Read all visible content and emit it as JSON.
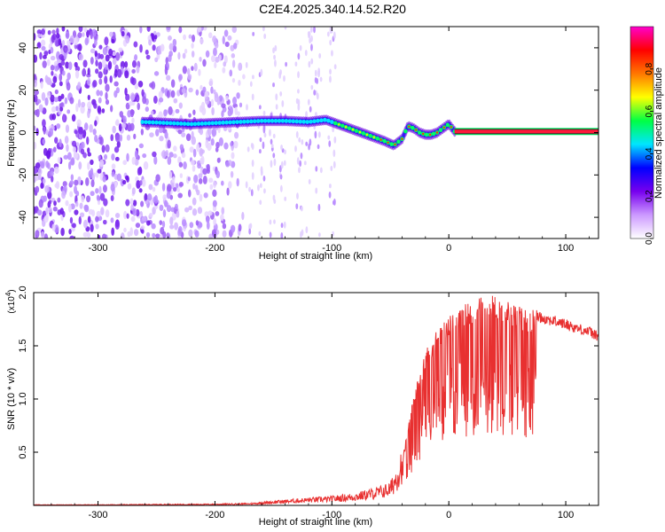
{
  "title": "C2E4.2025.340.14.52.R20",
  "chart_data": [
    {
      "type": "heatmap",
      "name": "spectrogram",
      "xlabel": "Height of straight line (km)",
      "ylabel": "Frequency (Hz)",
      "xlim": [
        -355,
        128
      ],
      "ylim": [
        -50,
        50
      ],
      "xticks": [
        -300,
        -200,
        -100,
        0,
        100
      ],
      "xtick_labels": [
        "-300",
        "-200",
        "-100",
        "0",
        "100"
      ],
      "yticks": [
        -40,
        -20,
        0,
        20,
        40
      ],
      "ytick_labels": [
        "-40",
        "-20",
        "0",
        "20",
        "40"
      ],
      "signal_track": {
        "x": [
          -262,
          -240,
          -220,
          -200,
          -180,
          -160,
          -140,
          -120,
          -105,
          -95,
          -85,
          -75,
          -65,
          -55,
          -47,
          -40,
          -35,
          -30,
          -25,
          -20,
          -15,
          -10,
          -5,
          0,
          5,
          128
        ],
        "y": [
          5,
          4.5,
          4,
          4.5,
          5,
          5.5,
          5.5,
          5,
          6,
          4,
          2,
          0,
          -2,
          -4,
          -6,
          -3,
          3,
          2,
          0,
          -1,
          -1,
          0,
          2,
          4,
          0.5,
          0.5
        ]
      },
      "colorbar": {
        "label": "Normalized spectral amplitude",
        "range": [
          0,
          1
        ],
        "ticks": [
          0.0,
          0.2,
          0.4,
          0.6,
          0.8
        ],
        "tick_labels": [
          "0.0",
          "0.2",
          "0.4",
          "0.6",
          "0.8"
        ],
        "colors": [
          "#ffffff",
          "#cc99ff",
          "#7700ee",
          "#0000ff",
          "#00e5ff",
          "#00ff44",
          "#ffff00",
          "#ff7700",
          "#ff0000",
          "#ff00cc"
        ]
      }
    },
    {
      "type": "line",
      "name": "snr",
      "xlabel": "Height of straight line (km)",
      "ylabel": "SNR (10 * v/v)",
      "y_multiplier": "(x10",
      "y_multiplier_exp": "4",
      "y_multiplier_close": ")",
      "xlim": [
        -355,
        128
      ],
      "ylim": [
        0,
        2.0
      ],
      "xticks": [
        -300,
        -200,
        -100,
        0,
        100
      ],
      "xtick_labels": [
        "-300",
        "-200",
        "-100",
        "0",
        "100"
      ],
      "yticks": [
        0.5,
        1.0,
        1.5,
        2.0
      ],
      "ytick_labels": [
        "0.5",
        "1.0",
        "1.5",
        "2.0"
      ],
      "color": "#e83030",
      "series": [
        {
          "name": "SNR",
          "x": [
            -355,
            -300,
            -250,
            -200,
            -170,
            -150,
            -120,
            -100,
            -80,
            -60,
            -50,
            -45,
            -40,
            -35,
            -30,
            -25,
            -20,
            -10,
            0,
            10,
            20,
            30,
            40,
            50,
            60,
            70,
            75,
            80,
            90,
            100,
            110,
            120,
            128
          ],
          "y": [
            0.005,
            0.005,
            0.008,
            0.01,
            0.015,
            0.03,
            0.05,
            0.06,
            0.08,
            0.12,
            0.15,
            0.25,
            0.4,
            0.7,
            1.0,
            1.2,
            1.4,
            1.6,
            1.7,
            1.8,
            1.85,
            1.9,
            1.9,
            1.85,
            1.8,
            1.75,
            1.8,
            1.78,
            1.75,
            1.72,
            1.68,
            1.65,
            1.6
          ]
        }
      ]
    }
  ]
}
